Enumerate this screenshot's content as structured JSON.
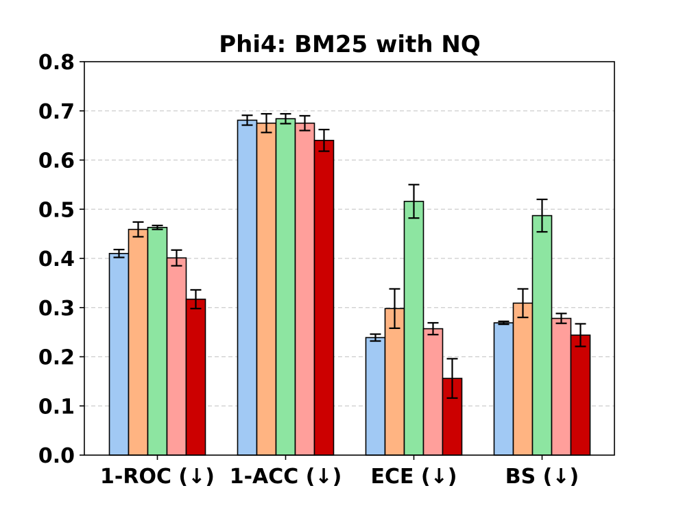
{
  "chart_data": {
    "type": "bar",
    "title": "Phi4: BM25 with NQ",
    "xlabel": "",
    "ylabel": "",
    "ylim": [
      0,
      0.8
    ],
    "yticks": [
      "0.0",
      "0.1",
      "0.2",
      "0.3",
      "0.4",
      "0.5",
      "0.6",
      "0.7",
      "0.8"
    ],
    "grid": true,
    "categories": [
      "1-ROC (↓)",
      "1-ACC (↓)",
      "ECE (↓)",
      "BS (↓)"
    ],
    "series": [
      {
        "color": "#a1c9f4",
        "values": [
          0.41,
          0.681,
          0.239,
          0.269
        ],
        "errors": [
          0.008,
          0.01,
          0.007,
          0.003
        ]
      },
      {
        "color": "#ffb482",
        "values": [
          0.459,
          0.675,
          0.298,
          0.309
        ],
        "errors": [
          0.015,
          0.019,
          0.04,
          0.029
        ]
      },
      {
        "color": "#8de5a1",
        "values": [
          0.463,
          0.684,
          0.516,
          0.487
        ],
        "errors": [
          0.004,
          0.01,
          0.034,
          0.033
        ]
      },
      {
        "color": "#ff9f9b",
        "values": [
          0.401,
          0.675,
          0.257,
          0.278
        ],
        "errors": [
          0.016,
          0.015,
          0.012,
          0.01
        ]
      },
      {
        "color": "#cc0000",
        "values": [
          0.317,
          0.64,
          0.156,
          0.244
        ],
        "errors": [
          0.019,
          0.022,
          0.04,
          0.023
        ]
      }
    ]
  }
}
